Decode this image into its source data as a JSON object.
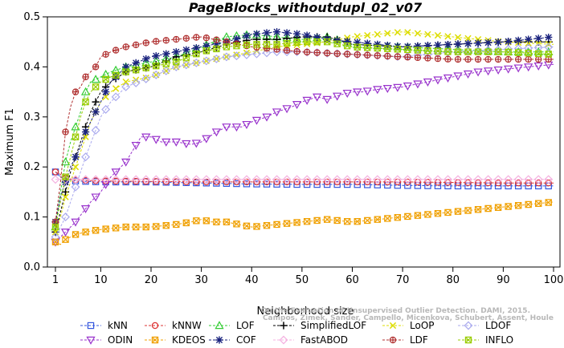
{
  "chart_data": {
    "type": "line",
    "title": "PageBlocks_withoutdupl_02_v07",
    "xlabel": "Neighborhood size",
    "ylabel": "Maximum F1",
    "xlim": [
      1,
      100
    ],
    "ylim": [
      0,
      0.5
    ],
    "xticks": [
      1,
      10,
      20,
      30,
      40,
      50,
      60,
      70,
      80,
      90,
      100
    ],
    "yticks": [
      "0.0",
      "0.1",
      "0.2",
      "0.3",
      "0.4",
      "0.5"
    ],
    "grid": false,
    "legend_position": "bottom",
    "credit_lines": [
      "Campos, Zimek, Sander, Campello, Micenkova, Schubert, Assent, Houle",
      "On the Evaluation of Unsupervised Outlier Detection. DAMI, 2015."
    ],
    "series": [
      {
        "name": "kNN",
        "color": "#3355dd",
        "marker": "square",
        "points": [
          [
            1,
            0.19
          ],
          [
            2,
            0.18
          ],
          [
            3,
            0.175
          ],
          [
            5,
            0.172
          ],
          [
            10,
            0.17
          ],
          [
            20,
            0.17
          ],
          [
            30,
            0.168
          ],
          [
            40,
            0.166
          ],
          [
            50,
            0.165
          ],
          [
            60,
            0.165
          ],
          [
            70,
            0.163
          ],
          [
            80,
            0.162
          ],
          [
            90,
            0.162
          ],
          [
            100,
            0.162
          ]
        ]
      },
      {
        "name": "kNNW",
        "color": "#dd3333",
        "marker": "circle",
        "points": [
          [
            1,
            0.19
          ],
          [
            2,
            0.185
          ],
          [
            3,
            0.178
          ],
          [
            5,
            0.174
          ],
          [
            10,
            0.172
          ],
          [
            20,
            0.171
          ],
          [
            30,
            0.17
          ],
          [
            40,
            0.17
          ],
          [
            50,
            0.17
          ],
          [
            60,
            0.17
          ],
          [
            70,
            0.17
          ],
          [
            80,
            0.169
          ],
          [
            90,
            0.168
          ],
          [
            100,
            0.168
          ]
        ]
      },
      {
        "name": "LOF",
        "color": "#33cc33",
        "marker": "triangle",
        "points": [
          [
            1,
            0.08
          ],
          [
            2,
            0.15
          ],
          [
            3,
            0.21
          ],
          [
            4,
            0.25
          ],
          [
            5,
            0.28
          ],
          [
            6,
            0.31
          ],
          [
            7,
            0.35
          ],
          [
            8,
            0.37
          ],
          [
            10,
            0.38
          ],
          [
            12,
            0.39
          ],
          [
            15,
            0.4
          ],
          [
            20,
            0.41
          ],
          [
            25,
            0.42
          ],
          [
            30,
            0.44
          ],
          [
            35,
            0.46
          ],
          [
            40,
            0.465
          ],
          [
            45,
            0.46
          ],
          [
            50,
            0.455
          ],
          [
            55,
            0.46
          ],
          [
            60,
            0.445
          ],
          [
            70,
            0.44
          ],
          [
            80,
            0.435
          ],
          [
            90,
            0.43
          ],
          [
            100,
            0.43
          ]
        ]
      },
      {
        "name": "SimplifiedLOF",
        "color": "#000000",
        "marker": "plus",
        "points": [
          [
            1,
            0.07
          ],
          [
            2,
            0.11
          ],
          [
            3,
            0.15
          ],
          [
            4,
            0.19
          ],
          [
            5,
            0.22
          ],
          [
            6,
            0.25
          ],
          [
            7,
            0.28
          ],
          [
            8,
            0.31
          ],
          [
            9,
            0.33
          ],
          [
            10,
            0.35
          ],
          [
            12,
            0.37
          ],
          [
            15,
            0.39
          ],
          [
            20,
            0.4
          ],
          [
            25,
            0.42
          ],
          [
            30,
            0.43
          ],
          [
            35,
            0.445
          ],
          [
            40,
            0.455
          ],
          [
            45,
            0.455
          ],
          [
            50,
            0.46
          ],
          [
            55,
            0.46
          ],
          [
            60,
            0.445
          ],
          [
            70,
            0.44
          ],
          [
            80,
            0.445
          ],
          [
            90,
            0.45
          ],
          [
            100,
            0.45
          ]
        ]
      },
      {
        "name": "LoOP",
        "color": "#dddd00",
        "marker": "x",
        "points": [
          [
            1,
            0.07
          ],
          [
            2,
            0.1
          ],
          [
            3,
            0.14
          ],
          [
            4,
            0.17
          ],
          [
            5,
            0.2
          ],
          [
            6,
            0.23
          ],
          [
            7,
            0.26
          ],
          [
            8,
            0.29
          ],
          [
            10,
            0.33
          ],
          [
            12,
            0.35
          ],
          [
            15,
            0.37
          ],
          [
            20,
            0.38
          ],
          [
            25,
            0.4
          ],
          [
            30,
            0.41
          ],
          [
            35,
            0.42
          ],
          [
            40,
            0.43
          ],
          [
            45,
            0.44
          ],
          [
            50,
            0.445
          ],
          [
            55,
            0.45
          ],
          [
            60,
            0.46
          ],
          [
            65,
            0.465
          ],
          [
            70,
            0.47
          ],
          [
            75,
            0.465
          ],
          [
            80,
            0.46
          ],
          [
            90,
            0.45
          ],
          [
            100,
            0.445
          ]
        ]
      },
      {
        "name": "LDOF",
        "color": "#aaaaee",
        "marker": "diamond",
        "points": [
          [
            1,
            0.06
          ],
          [
            2,
            0.08
          ],
          [
            3,
            0.1
          ],
          [
            4,
            0.13
          ],
          [
            5,
            0.16
          ],
          [
            7,
            0.22
          ],
          [
            10,
            0.3
          ],
          [
            12,
            0.33
          ],
          [
            15,
            0.36
          ],
          [
            20,
            0.38
          ],
          [
            25,
            0.4
          ],
          [
            30,
            0.41
          ],
          [
            35,
            0.42
          ],
          [
            40,
            0.425
          ],
          [
            45,
            0.43
          ],
          [
            50,
            0.43
          ],
          [
            60,
            0.425
          ],
          [
            70,
            0.42
          ],
          [
            80,
            0.43
          ],
          [
            90,
            0.435
          ],
          [
            100,
            0.44
          ]
        ]
      },
      {
        "name": "ODIN",
        "color": "#9933cc",
        "marker": "triangle-down",
        "points": [
          [
            1,
            0.05
          ],
          [
            2,
            0.06
          ],
          [
            3,
            0.07
          ],
          [
            5,
            0.09
          ],
          [
            8,
            0.13
          ],
          [
            10,
            0.15
          ],
          [
            12,
            0.18
          ],
          [
            15,
            0.21
          ],
          [
            18,
            0.26
          ],
          [
            20,
            0.26
          ],
          [
            22,
            0.25
          ],
          [
            25,
            0.25
          ],
          [
            28,
            0.245
          ],
          [
            30,
            0.25
          ],
          [
            33,
            0.27
          ],
          [
            35,
            0.28
          ],
          [
            38,
            0.28
          ],
          [
            40,
            0.29
          ],
          [
            43,
            0.3
          ],
          [
            45,
            0.31
          ],
          [
            48,
            0.32
          ],
          [
            50,
            0.33
          ],
          [
            53,
            0.34
          ],
          [
            55,
            0.335
          ],
          [
            58,
            0.345
          ],
          [
            60,
            0.35
          ],
          [
            62,
            0.35
          ],
          [
            65,
            0.355
          ],
          [
            70,
            0.36
          ],
          [
            75,
            0.37
          ],
          [
            80,
            0.38
          ],
          [
            85,
            0.39
          ],
          [
            90,
            0.395
          ],
          [
            95,
            0.4
          ],
          [
            100,
            0.405
          ]
        ]
      },
      {
        "name": "KDEOS",
        "color": "#f0a000",
        "marker": "square-x",
        "points": [
          [
            1,
            0.05
          ],
          [
            2,
            0.045
          ],
          [
            3,
            0.055
          ],
          [
            4,
            0.06
          ],
          [
            5,
            0.065
          ],
          [
            7,
            0.07
          ],
          [
            10,
            0.075
          ],
          [
            15,
            0.08
          ],
          [
            20,
            0.08
          ],
          [
            25,
            0.085
          ],
          [
            28,
            0.09
          ],
          [
            30,
            0.095
          ],
          [
            32,
            0.09
          ],
          [
            35,
            0.09
          ],
          [
            40,
            0.08
          ],
          [
            45,
            0.085
          ],
          [
            50,
            0.09
          ],
          [
            55,
            0.095
          ],
          [
            60,
            0.09
          ],
          [
            65,
            0.095
          ],
          [
            70,
            0.1
          ],
          [
            75,
            0.105
          ],
          [
            80,
            0.11
          ],
          [
            85,
            0.115
          ],
          [
            90,
            0.12
          ],
          [
            95,
            0.125
          ],
          [
            100,
            0.13
          ]
        ]
      },
      {
        "name": "COF",
        "color": "#1a237e",
        "marker": "asterisk",
        "points": [
          [
            1,
            0.09
          ],
          [
            2,
            0.14
          ],
          [
            3,
            0.17
          ],
          [
            4,
            0.2
          ],
          [
            5,
            0.22
          ],
          [
            6,
            0.24
          ],
          [
            7,
            0.27
          ],
          [
            8,
            0.29
          ],
          [
            10,
            0.33
          ],
          [
            12,
            0.37
          ],
          [
            15,
            0.4
          ],
          [
            20,
            0.42
          ],
          [
            25,
            0.43
          ],
          [
            30,
            0.44
          ],
          [
            35,
            0.45
          ],
          [
            40,
            0.465
          ],
          [
            45,
            0.47
          ],
          [
            50,
            0.465
          ],
          [
            55,
            0.455
          ],
          [
            60,
            0.45
          ],
          [
            70,
            0.44
          ],
          [
            80,
            0.445
          ],
          [
            90,
            0.45
          ],
          [
            100,
            0.46
          ]
        ]
      },
      {
        "name": "FastABOD",
        "color": "#f4b0e0",
        "marker": "diamond",
        "points": [
          [
            1,
            0.175
          ],
          [
            2,
            0.175
          ],
          [
            5,
            0.175
          ],
          [
            10,
            0.175
          ],
          [
            20,
            0.175
          ],
          [
            30,
            0.175
          ],
          [
            40,
            0.175
          ],
          [
            50,
            0.175
          ],
          [
            60,
            0.175
          ],
          [
            70,
            0.175
          ],
          [
            80,
            0.175
          ],
          [
            90,
            0.175
          ],
          [
            100,
            0.175
          ]
        ]
      },
      {
        "name": "LDF",
        "color": "#b03030",
        "marker": "circle-plus",
        "points": [
          [
            1,
            0.09
          ],
          [
            2,
            0.17
          ],
          [
            3,
            0.27
          ],
          [
            4,
            0.32
          ],
          [
            5,
            0.35
          ],
          [
            6,
            0.36
          ],
          [
            7,
            0.38
          ],
          [
            8,
            0.39
          ],
          [
            9,
            0.4
          ],
          [
            10,
            0.42
          ],
          [
            12,
            0.43
          ],
          [
            15,
            0.44
          ],
          [
            20,
            0.45
          ],
          [
            25,
            0.455
          ],
          [
            30,
            0.46
          ],
          [
            35,
            0.45
          ],
          [
            40,
            0.44
          ],
          [
            45,
            0.435
          ],
          [
            50,
            0.43
          ],
          [
            60,
            0.425
          ],
          [
            70,
            0.42
          ],
          [
            80,
            0.415
          ],
          [
            90,
            0.415
          ],
          [
            100,
            0.415
          ]
        ]
      },
      {
        "name": "INFLO",
        "color": "#99cc00",
        "marker": "square-x",
        "points": [
          [
            1,
            0.08
          ],
          [
            2,
            0.13
          ],
          [
            3,
            0.18
          ],
          [
            4,
            0.22
          ],
          [
            5,
            0.26
          ],
          [
            6,
            0.3
          ],
          [
            7,
            0.33
          ],
          [
            8,
            0.35
          ],
          [
            10,
            0.37
          ],
          [
            12,
            0.38
          ],
          [
            15,
            0.39
          ],
          [
            20,
            0.4
          ],
          [
            25,
            0.41
          ],
          [
            30,
            0.43
          ],
          [
            35,
            0.44
          ],
          [
            40,
            0.445
          ],
          [
            45,
            0.445
          ],
          [
            50,
            0.45
          ],
          [
            55,
            0.45
          ],
          [
            60,
            0.44
          ],
          [
            70,
            0.435
          ],
          [
            80,
            0.43
          ],
          [
            90,
            0.43
          ],
          [
            100,
            0.425
          ]
        ]
      }
    ]
  }
}
